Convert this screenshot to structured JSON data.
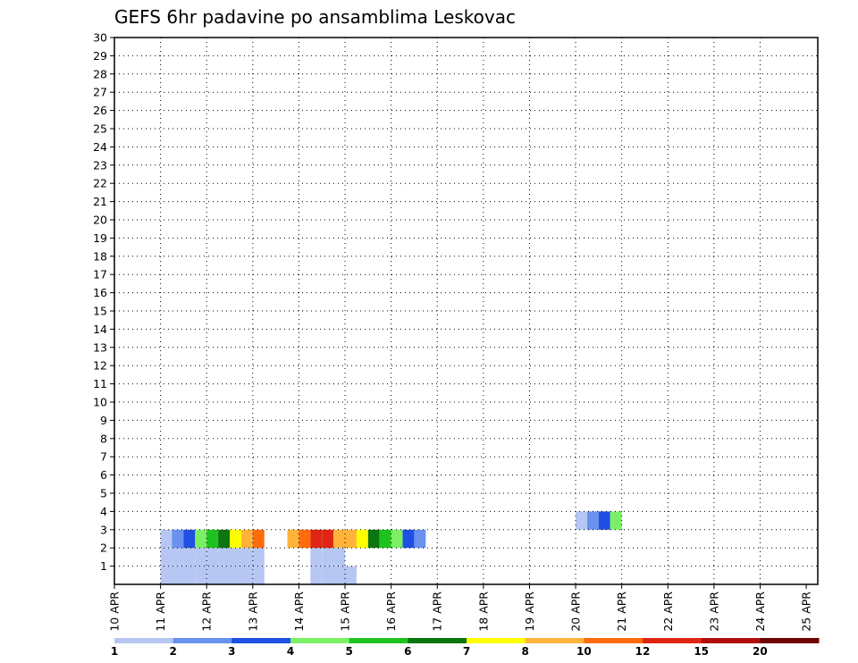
{
  "chart_data": {
    "type": "heatmap",
    "title": "GEFS 6hr padavine po ansamblima Leskovac",
    "x_ticks": [
      "10 APR",
      "11 APR",
      "12 APR",
      "13 APR",
      "14 APR",
      "15 APR",
      "16 APR",
      "17 APR",
      "18 APR",
      "19 APR",
      "20 APR",
      "21 APR",
      "22 APR",
      "23 APR",
      "24 APR",
      "25 APR"
    ],
    "y_ticks": [
      "1",
      "2",
      "3",
      "4",
      "5",
      "6",
      "7",
      "8",
      "9",
      "10",
      "11",
      "12",
      "13",
      "14",
      "15",
      "16",
      "17",
      "18",
      "19",
      "20",
      "21",
      "22",
      "23",
      "24",
      "25",
      "26",
      "27",
      "28",
      "29",
      "30"
    ],
    "y_range": [
      0,
      30
    ],
    "x_step": "6 hr",
    "grid": "dotted",
    "colorbar": {
      "labels": [
        "1",
        "2",
        "3",
        "4",
        "5",
        "6",
        "7",
        "8",
        "10",
        "12",
        "15",
        "20"
      ],
      "colors": [
        "#b7c7f3",
        "#6891f0",
        "#1f4fe3",
        "#7cf065",
        "#1fc31f",
        "#0c7510",
        "#ffff00",
        "#ffb33a",
        "#ff6d0b",
        "#e02612",
        "#b00e0e",
        "#6e0404"
      ]
    },
    "series": [
      {
        "member": 1,
        "cells": [
          [
            1,
            4
          ],
          [
            1,
            5
          ],
          [
            1,
            6
          ],
          [
            1,
            7
          ],
          [
            1,
            8
          ],
          [
            1,
            9
          ],
          [
            1,
            10
          ],
          [
            1,
            11
          ],
          [
            1,
            12
          ],
          [
            1,
            17
          ],
          [
            1,
            18
          ],
          [
            1,
            19
          ],
          [
            1,
            20
          ]
        ]
      },
      {
        "member": 2,
        "cells": [
          [
            1,
            4
          ],
          [
            1,
            5
          ],
          [
            1,
            6
          ],
          [
            1,
            7
          ],
          [
            1,
            8
          ],
          [
            1,
            9
          ],
          [
            1,
            10
          ],
          [
            1,
            11
          ],
          [
            1,
            12
          ],
          [
            1,
            17
          ],
          [
            1,
            18
          ],
          [
            1,
            19
          ]
        ]
      },
      {
        "member": 3,
        "cells": [
          [
            1,
            4
          ],
          [
            2,
            5
          ],
          [
            3,
            6
          ],
          [
            4,
            7
          ],
          [
            5,
            8
          ],
          [
            6,
            9
          ],
          [
            7,
            10
          ],
          [
            8,
            11
          ],
          [
            9,
            12
          ],
          [
            8,
            15
          ],
          [
            9,
            16
          ],
          [
            10,
            17
          ],
          [
            10,
            18
          ],
          [
            8,
            19
          ],
          [
            8,
            20
          ],
          [
            7,
            21
          ],
          [
            6,
            22
          ],
          [
            5,
            23
          ],
          [
            4,
            24
          ],
          [
            3,
            25
          ],
          [
            2,
            26
          ]
        ]
      },
      {
        "member": 4,
        "cells": [
          [
            1,
            40
          ],
          [
            2,
            41
          ],
          [
            3,
            42
          ],
          [
            4,
            43
          ]
        ]
      }
    ],
    "x_ticks_note": "10 APR .. 25 APR"
  }
}
